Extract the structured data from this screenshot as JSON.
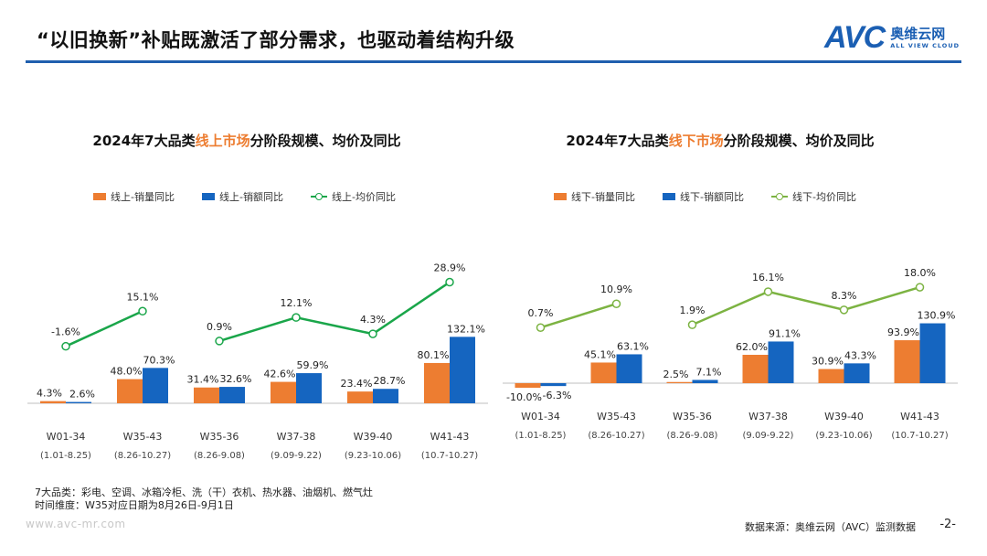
{
  "header": {
    "title": "“以旧换新”补贴既激活了部分需求，也驱动着结构升级",
    "logo": {
      "mark": "AVC",
      "cn": "奥维云网",
      "en": "ALL VIEW CLOUD"
    }
  },
  "charts": {
    "online": {
      "title_prefix": "2024年7大品类",
      "title_highlight": "线上市场",
      "title_suffix": "分阶段规模、均价及同比",
      "legend": [
        "线上-销量同比",
        "线上-销额同比",
        "线上-均价同比"
      ]
    },
    "offline": {
      "title_prefix": "2024年7大品类",
      "title_highlight": "线下市场",
      "title_suffix": "分阶段规模、均价及同比",
      "legend": [
        "线下-销量同比",
        "线下-销额同比",
        "线下-均价同比"
      ]
    }
  },
  "chart_data": [
    {
      "type": "bar",
      "title": "2024年7大品类线上市场分阶段规模、均价及同比",
      "categories": [
        "W01-34",
        "W35-43",
        "W35-36",
        "W37-38",
        "W39-40",
        "W41-43"
      ],
      "category_sublabels": [
        "(1.01-8.25)",
        "(8.26-10.27)",
        "(8.26-9.08)",
        "(9.09-9.22)",
        "(9.23-10.06)",
        "(10.7-10.27)"
      ],
      "series": [
        {
          "name": "线上-销量同比",
          "kind": "bar",
          "color": "#ed7d31",
          "values": [
            4.3,
            48.0,
            31.4,
            42.6,
            23.4,
            80.1
          ],
          "labels": [
            "4.3%",
            "48.0%",
            "31.4%",
            "42.6%",
            "23.4%",
            "80.1%"
          ]
        },
        {
          "name": "线上-销额同比",
          "kind": "bar",
          "color": "#1565c0",
          "values": [
            2.6,
            70.3,
            32.6,
            59.9,
            28.7,
            132.1
          ],
          "labels": [
            "2.6%",
            "70.3%",
            "32.6%",
            "59.9%",
            "28.7%",
            "132.1%"
          ]
        },
        {
          "name": "线上-均价同比",
          "kind": "line",
          "color": "#1aa64a",
          "values": [
            -1.6,
            15.1,
            0.9,
            12.1,
            4.3,
            28.9
          ],
          "labels": [
            "-1.6%",
            "15.1%",
            "0.9%",
            "12.1%",
            "4.3%",
            "28.9%"
          ],
          "segments": [
            [
              0,
              1
            ],
            [
              2,
              3,
              4,
              5
            ]
          ]
        }
      ],
      "grid": false,
      "legend_position": "top"
    },
    {
      "type": "bar",
      "title": "2024年7大品类线下市场分阶段规模、均价及同比",
      "categories": [
        "W01-34",
        "W35-43",
        "W35-36",
        "W37-38",
        "W39-40",
        "W41-43"
      ],
      "category_sublabels": [
        "(1.01-8.25)",
        "(8.26-10.27)",
        "(8.26-9.08)",
        "(9.09-9.22)",
        "(9.23-10.06)",
        "(10.7-10.27)"
      ],
      "series": [
        {
          "name": "线下-销量同比",
          "kind": "bar",
          "color": "#ed7d31",
          "values": [
            -10.0,
            45.1,
            2.5,
            62.0,
            30.9,
            93.9
          ],
          "labels": [
            "-10.0%",
            "45.1%",
            "2.5%",
            "62.0%",
            "30.9%",
            "93.9%"
          ]
        },
        {
          "name": "线下-销额同比",
          "kind": "bar",
          "color": "#1565c0",
          "values": [
            -6.3,
            63.1,
            7.1,
            91.1,
            43.3,
            130.9
          ],
          "labels": [
            "-6.3%",
            "63.1%",
            "7.1%",
            "91.1%",
            "43.3%",
            "130.9%"
          ]
        },
        {
          "name": "线下-均价同比",
          "kind": "line",
          "color": "#7cb342",
          "values": [
            0.7,
            10.9,
            1.9,
            16.1,
            8.3,
            18.0
          ],
          "labels": [
            "0.7%",
            "10.9%",
            "1.9%",
            "16.1%",
            "8.3%",
            "18.0%"
          ],
          "segments": [
            [
              0,
              1
            ],
            [
              2,
              3,
              4,
              5
            ]
          ]
        }
      ],
      "grid": false,
      "legend_position": "top"
    }
  ],
  "footnote": {
    "line1": "7大品类：彩电、空调、冰箱冷柜、洗（干）衣机、热水器、油烟机、燃气灶",
    "line2": "时间维度：W35对应日期为8月26日-9月1日"
  },
  "footer": {
    "website": "www.avc-mr.com",
    "source": "数据来源：奥维云网（AVC）监测数据",
    "page": "-2-"
  }
}
